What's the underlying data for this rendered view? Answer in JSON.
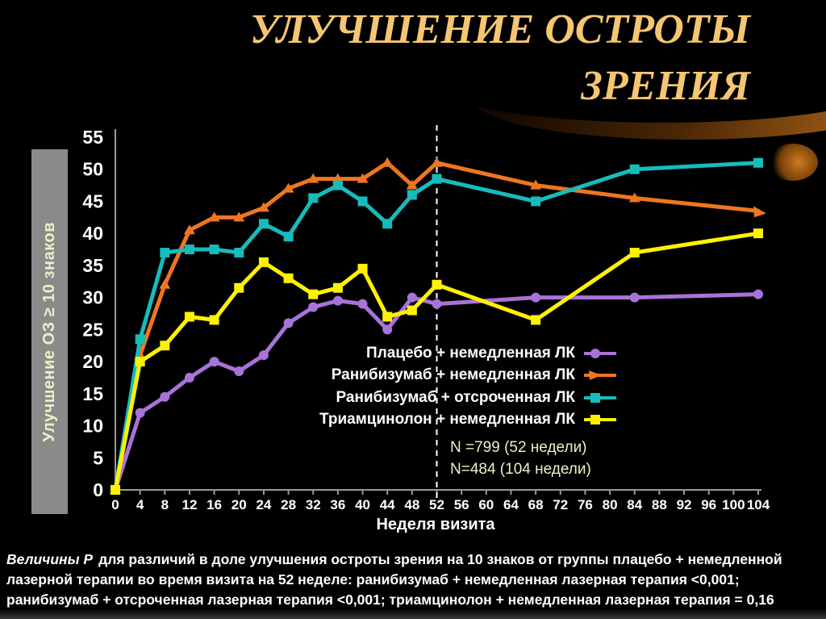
{
  "title": "УЛУЧШЕНИЕ ОСТРОТЫ ЗРЕНИЯ",
  "chart_data": {
    "type": "line",
    "title": "УЛУЧШЕНИЕ ОСТРОТЫ ЗРЕНИЯ",
    "xlabel": "Неделя визита",
    "ylabel": "Улучшение ОЗ ≥ 10 знаков",
    "x": [
      0,
      4,
      8,
      12,
      16,
      20,
      24,
      28,
      32,
      36,
      40,
      44,
      48,
      52,
      68,
      84,
      104
    ],
    "xlim": [
      0,
      104
    ],
    "ylim": [
      0,
      55
    ],
    "x_ticks": [
      0,
      4,
      8,
      12,
      16,
      20,
      24,
      28,
      32,
      36,
      40,
      44,
      48,
      52,
      56,
      60,
      64,
      68,
      72,
      76,
      80,
      84,
      88,
      92,
      96,
      100,
      104
    ],
    "y_ticks": [
      0,
      5,
      10,
      15,
      20,
      25,
      30,
      35,
      40,
      45,
      50,
      55
    ],
    "grid": false,
    "background": "#000000",
    "legend_position": "inside-right",
    "reference_line": {
      "axis": "x",
      "value": 52,
      "style": "dashed",
      "color": "#ffffff"
    },
    "series": [
      {
        "name": "Плацебо + немедленная ЛК",
        "color": "#A873D9",
        "marker": "circle",
        "values": [
          0,
          12,
          14.5,
          17.5,
          20,
          18.5,
          21,
          26,
          28.5,
          29.5,
          29,
          25,
          30,
          29,
          30,
          30,
          30.5
        ]
      },
      {
        "name": "Ранибизумаб + немедленная ЛК",
        "color": "#EE7620",
        "marker": "triangle",
        "values": [
          0,
          21,
          32,
          40.5,
          42.5,
          42.5,
          44,
          47,
          48.5,
          48.5,
          48.5,
          51,
          47.5,
          51,
          47.5,
          45.5,
          43.5
        ]
      },
      {
        "name": "Ранибизумаб + отсроченная ЛК",
        "color": "#16BCBC",
        "marker": "square",
        "values": [
          0,
          23.5,
          37,
          37.5,
          37.5,
          37,
          41.5,
          39.5,
          45.5,
          47.5,
          45,
          41.5,
          46,
          48.5,
          45,
          50,
          51
        ]
      },
      {
        "name": "Триамцинолон + немедленная ЛК",
        "color": "#FFF200",
        "marker": "square",
        "values": [
          0,
          20,
          22.5,
          27,
          26.5,
          31.5,
          35.5,
          33,
          30.5,
          31.5,
          34.5,
          27,
          28,
          32,
          26.5,
          37,
          40
        ]
      }
    ]
  },
  "annotations": {
    "n_52": "N =799 (52 недели)",
    "n_104": "N=484 (104 недели)"
  },
  "footer": {
    "lead": "Величины Р",
    "text": "для различий в доле улучшения остроты зрения на 10 знаков от группы плацебо + немедленной лазерной терапии во время визита на 52 неделе: ранибизумаб + немедленная лазерная терапия <0,001; ранибизумаб + отсроченная лазерная терапия <0,001; триамцинолон + немедленная лазерная терапия = 0,16"
  },
  "colors": {
    "title_gold": "#F5C672",
    "pale_yellow_text": "#EDEDC8",
    "axis_gray": "#9a9a9a",
    "sidebar_gray": "#8a8a8a"
  }
}
